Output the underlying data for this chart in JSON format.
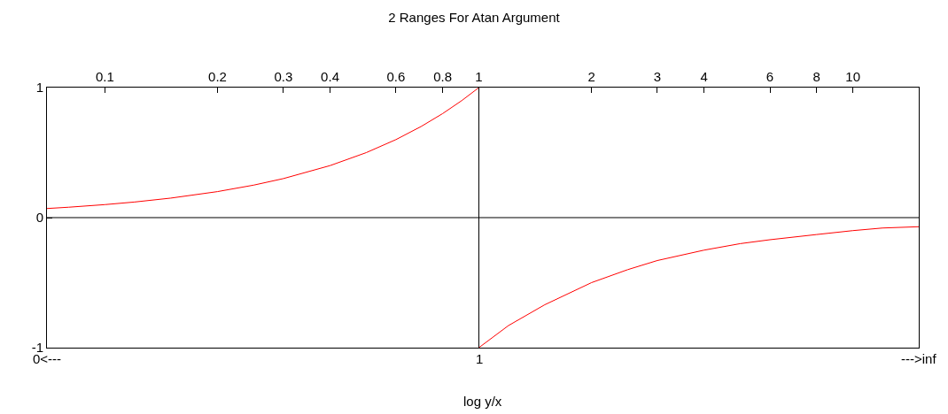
{
  "chart_data": {
    "type": "line",
    "title": "2 Ranges For Atan Argument",
    "xlabel": "log y/x",
    "log": "x",
    "xlim": [
      0.07,
      15
    ],
    "xticks": [
      0.1,
      0.2,
      0.3,
      0.4,
      0.6,
      0.8,
      1,
      2,
      3,
      4,
      6,
      8,
      10
    ],
    "ylim": [
      -1,
      1
    ],
    "yticks": [
      -1,
      0,
      1
    ],
    "annotations": [
      "0<---",
      {
        "text": "1",
        "x": 1,
        "y": -1
      },
      "--->inf"
    ],
    "ref_lines": [
      {
        "axis": "y",
        "value": 0,
        "color": "#000000"
      },
      {
        "axis": "x",
        "value": 1,
        "color": "#000000"
      }
    ],
    "series": [
      {
        "color": "#ff0000",
        "x": [
          0.07,
          0.08,
          0.1,
          0.12,
          0.15,
          0.2,
          0.25,
          0.3,
          0.4,
          0.5,
          0.6,
          0.7,
          0.8,
          0.9,
          1
        ],
        "values": [
          0.07,
          0.08,
          0.1,
          0.12,
          0.15,
          0.2,
          0.25,
          0.3,
          0.4,
          0.5,
          0.6,
          0.7,
          0.8,
          0.9,
          1
        ]
      },
      {
        "color": "#ff0000",
        "x": [
          1,
          1.2,
          1.5,
          2,
          2.5,
          3,
          4,
          5,
          6,
          8,
          10,
          12,
          15
        ],
        "values": [
          -1,
          -0.83,
          -0.67,
          -0.5,
          -0.4,
          -0.33,
          -0.25,
          -0.2,
          -0.17,
          -0.13,
          -0.1,
          -0.08,
          -0.07
        ]
      }
    ]
  }
}
